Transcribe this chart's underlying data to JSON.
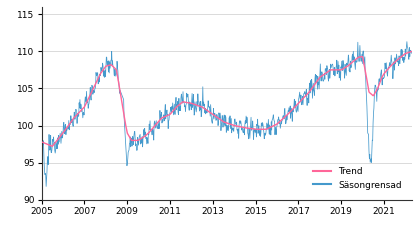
{
  "title": "",
  "xlim": [
    2005.0,
    2022.3
  ],
  "ylim": [
    90,
    116
  ],
  "yticks": [
    90,
    95,
    100,
    105,
    110,
    115
  ],
  "xticks": [
    2005,
    2007,
    2009,
    2011,
    2013,
    2015,
    2017,
    2019,
    2021
  ],
  "trend_color": "#FF6699",
  "seasonal_color": "#4499CC",
  "legend_labels": [
    "Trend",
    "Säsongrensad"
  ],
  "background_color": "#FFFFFF",
  "grid_color": "#CCCCCC",
  "trend_points": [
    [
      2005.0,
      97.8
    ],
    [
      2005.25,
      97.5
    ],
    [
      2005.5,
      97.2
    ],
    [
      2006.0,
      99.0
    ],
    [
      2006.5,
      101.0
    ],
    [
      2007.0,
      102.5
    ],
    [
      2007.5,
      105.5
    ],
    [
      2007.75,
      107.0
    ],
    [
      2008.0,
      108.0
    ],
    [
      2008.25,
      108.2
    ],
    [
      2008.5,
      107.5
    ],
    [
      2008.7,
      104.0
    ],
    [
      2008.9,
      100.5
    ],
    [
      2009.0,
      99.0
    ],
    [
      2009.2,
      98.0
    ],
    [
      2009.5,
      98.0
    ],
    [
      2009.8,
      98.5
    ],
    [
      2010.0,
      99.0
    ],
    [
      2010.3,
      100.0
    ],
    [
      2010.6,
      101.0
    ],
    [
      2011.0,
      101.5
    ],
    [
      2011.3,
      102.5
    ],
    [
      2011.6,
      103.2
    ],
    [
      2012.0,
      103.0
    ],
    [
      2012.5,
      102.5
    ],
    [
      2013.0,
      101.5
    ],
    [
      2013.5,
      100.5
    ],
    [
      2014.0,
      100.0
    ],
    [
      2014.5,
      99.7
    ],
    [
      2015.0,
      99.5
    ],
    [
      2015.5,
      99.5
    ],
    [
      2016.0,
      100.2
    ],
    [
      2016.5,
      101.5
    ],
    [
      2017.0,
      103.0
    ],
    [
      2017.5,
      104.5
    ],
    [
      2018.0,
      106.5
    ],
    [
      2018.5,
      107.5
    ],
    [
      2019.0,
      107.5
    ],
    [
      2019.3,
      108.0
    ],
    [
      2019.5,
      108.5
    ],
    [
      2019.8,
      109.2
    ],
    [
      2020.0,
      109.3
    ],
    [
      2020.15,
      107.0
    ],
    [
      2020.3,
      104.5
    ],
    [
      2020.5,
      104.0
    ],
    [
      2020.7,
      105.0
    ],
    [
      2020.9,
      106.5
    ],
    [
      2021.0,
      107.0
    ],
    [
      2021.3,
      108.0
    ],
    [
      2021.6,
      108.8
    ],
    [
      2021.9,
      109.5
    ],
    [
      2022.0,
      109.7
    ],
    [
      2022.3,
      110.0
    ]
  ]
}
